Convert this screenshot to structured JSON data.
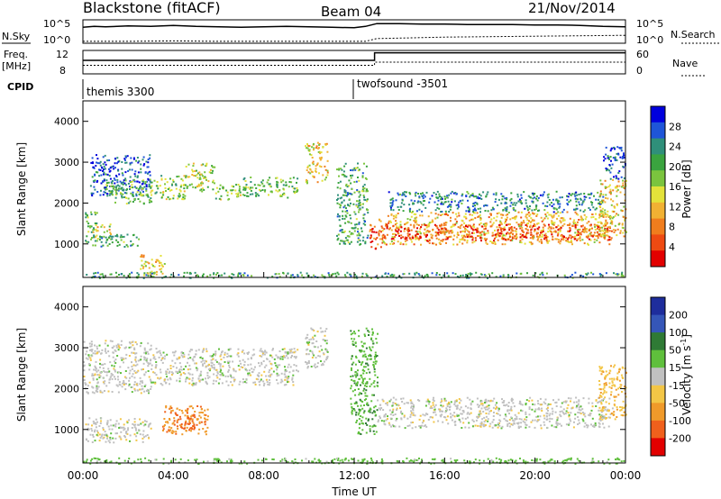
{
  "header": {
    "station": "Blackstone (fitACF)",
    "beam": "Beam 04",
    "date": "21/Nov/2014"
  },
  "aux_panels": {
    "nsky_label": "N.Sky",
    "nsearch_label": "N.Search",
    "freq_label": "Freq.",
    "freq_unit": "[MHz]",
    "nave_label": "Nave",
    "cpid_label": "CPID",
    "nsky_ticks": [
      "10^5",
      "10^0"
    ],
    "freq_ticks": [
      "12",
      "8"
    ],
    "nave_ticks": [
      "60",
      "0"
    ],
    "cpid_segments": [
      {
        "name": "themis 3300",
        "start_hour": 0
      },
      {
        "name": "twofsound -3501",
        "start_hour": 12.0
      }
    ],
    "nsky_series": {
      "hours": [
        0,
        0.5,
        1,
        2,
        3,
        4,
        5,
        6,
        7,
        8,
        9,
        10,
        11,
        12,
        12.5,
        13,
        14,
        15,
        16,
        17,
        18,
        19,
        20,
        21,
        22,
        23,
        24
      ],
      "log10_values": [
        3.4,
        3.6,
        3.5,
        3.7,
        3.6,
        3.8,
        3.6,
        3.5,
        3.4,
        3.5,
        3.6,
        3.5,
        3.4,
        3.3,
        3.6,
        4.2,
        4.2,
        4.1,
        4.1,
        4.0,
        4.0,
        4.0,
        3.9,
        3.9,
        3.8,
        3.6,
        3.5
      ]
    },
    "nsearch_series": {
      "hours": [
        0,
        2,
        4,
        6,
        8,
        10,
        12,
        12.5,
        13,
        14,
        16,
        18,
        20,
        22,
        24
      ],
      "log10_values": [
        0.4,
        0.4,
        0.5,
        0.4,
        0.4,
        0.4,
        0.4,
        0.4,
        1.0,
        1.1,
        1.3,
        1.4,
        1.5,
        1.6,
        1.7
      ]
    },
    "freq_series": {
      "hours": [
        0,
        12.9,
        12.9,
        24
      ],
      "values": [
        10.3,
        10.3,
        11.6,
        11.6
      ]
    },
    "nave_series": {
      "hours": [
        0,
        12.9,
        12.9,
        24
      ],
      "values": [
        22,
        22,
        30,
        30
      ]
    }
  },
  "colorbars": {
    "power": {
      "label": "Power [dB]",
      "ticks": [
        "28",
        "24",
        "20",
        "16",
        "12",
        "8",
        "4"
      ],
      "colors": [
        "#0000dd",
        "#1e55d8",
        "#2f8f7a",
        "#3aa43f",
        "#7bc43e",
        "#e3e23a",
        "#f1b133",
        "#f07d1d",
        "#ee4a12",
        "#e20000"
      ]
    },
    "velocity": {
      "label_prefix": "Velocity [m s",
      "label_exp": "-1",
      "label_suffix": "]",
      "ticks": [
        "200",
        "100",
        "50",
        "15",
        "-15",
        "-50",
        "-100",
        "-200"
      ],
      "colors": [
        "#1e2d9c",
        "#3556b8",
        "#2f7a35",
        "#5fbf3c",
        "#c0c0c0",
        "#f3c646",
        "#f09a2a",
        "#f0601c",
        "#e20000"
      ]
    }
  },
  "chart_data": [
    {
      "type": "heatmap",
      "title": "Power",
      "ylabel": "Slant Range [km]",
      "xlabel": "",
      "xlim_hours": [
        0,
        24
      ],
      "ylim": [
        180,
        4500
      ],
      "yticks": [
        "1000",
        "2000",
        "3000",
        "4000"
      ],
      "yticks_values": [
        1000,
        2000,
        3000,
        4000
      ],
      "colorbar_range_db": [
        0,
        32
      ],
      "bands": [
        {
          "t0": 0.0,
          "t1": 0.6,
          "r0": 1300,
          "r1": 1800,
          "level": 0.35
        },
        {
          "t0": 0.4,
          "t1": 1.2,
          "r0": 1150,
          "r1": 1500,
          "level": 0.55
        },
        {
          "t0": 0.3,
          "t1": 3.0,
          "r0": 2200,
          "r1": 3200,
          "level": 0.15
        },
        {
          "t0": 1.0,
          "t1": 3.0,
          "r0": 2000,
          "r1": 2600,
          "level": 0.4
        },
        {
          "t0": 0.0,
          "t1": 2.5,
          "r0": 950,
          "r1": 1250,
          "level": 0.35
        },
        {
          "t0": 2.5,
          "t1": 3.6,
          "r0": 250,
          "r1": 750,
          "level": 0.6
        },
        {
          "t0": 3.0,
          "t1": 4.5,
          "r0": 2100,
          "r1": 2700,
          "level": 0.45
        },
        {
          "t0": 4.5,
          "t1": 5.8,
          "r0": 2300,
          "r1": 3000,
          "level": 0.5
        },
        {
          "t0": 5.8,
          "t1": 7.0,
          "r0": 2100,
          "r1": 2500,
          "level": 0.45
        },
        {
          "t0": 7.0,
          "t1": 9.5,
          "r0": 2150,
          "r1": 2650,
          "level": 0.4
        },
        {
          "t0": 9.8,
          "t1": 10.8,
          "r0": 2500,
          "r1": 3500,
          "level": 0.6
        },
        {
          "t0": 11.2,
          "t1": 12.6,
          "r0": 1000,
          "r1": 3000,
          "level": 0.35
        },
        {
          "t0": 12.6,
          "t1": 13.2,
          "r0": 900,
          "r1": 1500,
          "level": 0.8
        },
        {
          "t0": 13.0,
          "t1": 23.4,
          "r0": 1000,
          "r1": 1800,
          "level": 0.65
        },
        {
          "t0": 13.0,
          "t1": 23.4,
          "r0": 1100,
          "r1": 1500,
          "level": 0.85
        },
        {
          "t0": 13.5,
          "t1": 23.0,
          "r0": 1800,
          "r1": 2300,
          "level": 0.25
        },
        {
          "t0": 22.8,
          "t1": 24.0,
          "r0": 1200,
          "r1": 2600,
          "level": 0.6
        },
        {
          "t0": 23.0,
          "t1": 24.0,
          "r0": 2600,
          "r1": 3400,
          "level": 0.15
        },
        {
          "t0": 0.0,
          "t1": 24.0,
          "r0": 180,
          "r1": 320,
          "level": 0.3
        }
      ]
    },
    {
      "type": "heatmap",
      "title": "Velocity",
      "ylabel": "Slant Range [km]",
      "xlabel": "Time UT",
      "xlim_hours": [
        0,
        24
      ],
      "xticks": [
        "00:00",
        "04:00",
        "08:00",
        "12:00",
        "16:00",
        "20:00",
        "00:00"
      ],
      "xticks_hours": [
        0,
        4,
        8,
        12,
        16,
        20,
        24
      ],
      "ylim": [
        180,
        4500
      ],
      "yticks": [
        "1000",
        "2000",
        "3000",
        "4000"
      ],
      "yticks_values": [
        1000,
        2000,
        3000,
        4000
      ],
      "colorbar_range_ms": [
        -200,
        200
      ],
      "bands": [
        {
          "t0": 0.0,
          "t1": 3.0,
          "r0": 1900,
          "r1": 3200,
          "vel": 0
        },
        {
          "t0": 0.0,
          "t1": 3.0,
          "r0": 700,
          "r1": 1300,
          "vel": 0
        },
        {
          "t0": 3.5,
          "t1": 5.5,
          "r0": 900,
          "r1": 1600,
          "vel": -90
        },
        {
          "t0": 4.0,
          "t1": 5.0,
          "r0": 1000,
          "r1": 1400,
          "vel": -170
        },
        {
          "t0": 3.0,
          "t1": 9.5,
          "r0": 2100,
          "r1": 3000,
          "vel": 0
        },
        {
          "t0": 9.8,
          "t1": 10.8,
          "r0": 2500,
          "r1": 3500,
          "vel": 0
        },
        {
          "t0": 11.8,
          "t1": 13.0,
          "r0": 900,
          "r1": 3500,
          "vel": 40
        },
        {
          "t0": 13.0,
          "t1": 23.4,
          "r0": 1050,
          "r1": 1800,
          "vel": 0
        },
        {
          "t0": 22.8,
          "t1": 24.0,
          "r0": 1200,
          "r1": 2600,
          "vel": -40
        },
        {
          "t0": 0.0,
          "t1": 24.0,
          "r0": 180,
          "r1": 320,
          "vel": 30
        }
      ]
    }
  ]
}
